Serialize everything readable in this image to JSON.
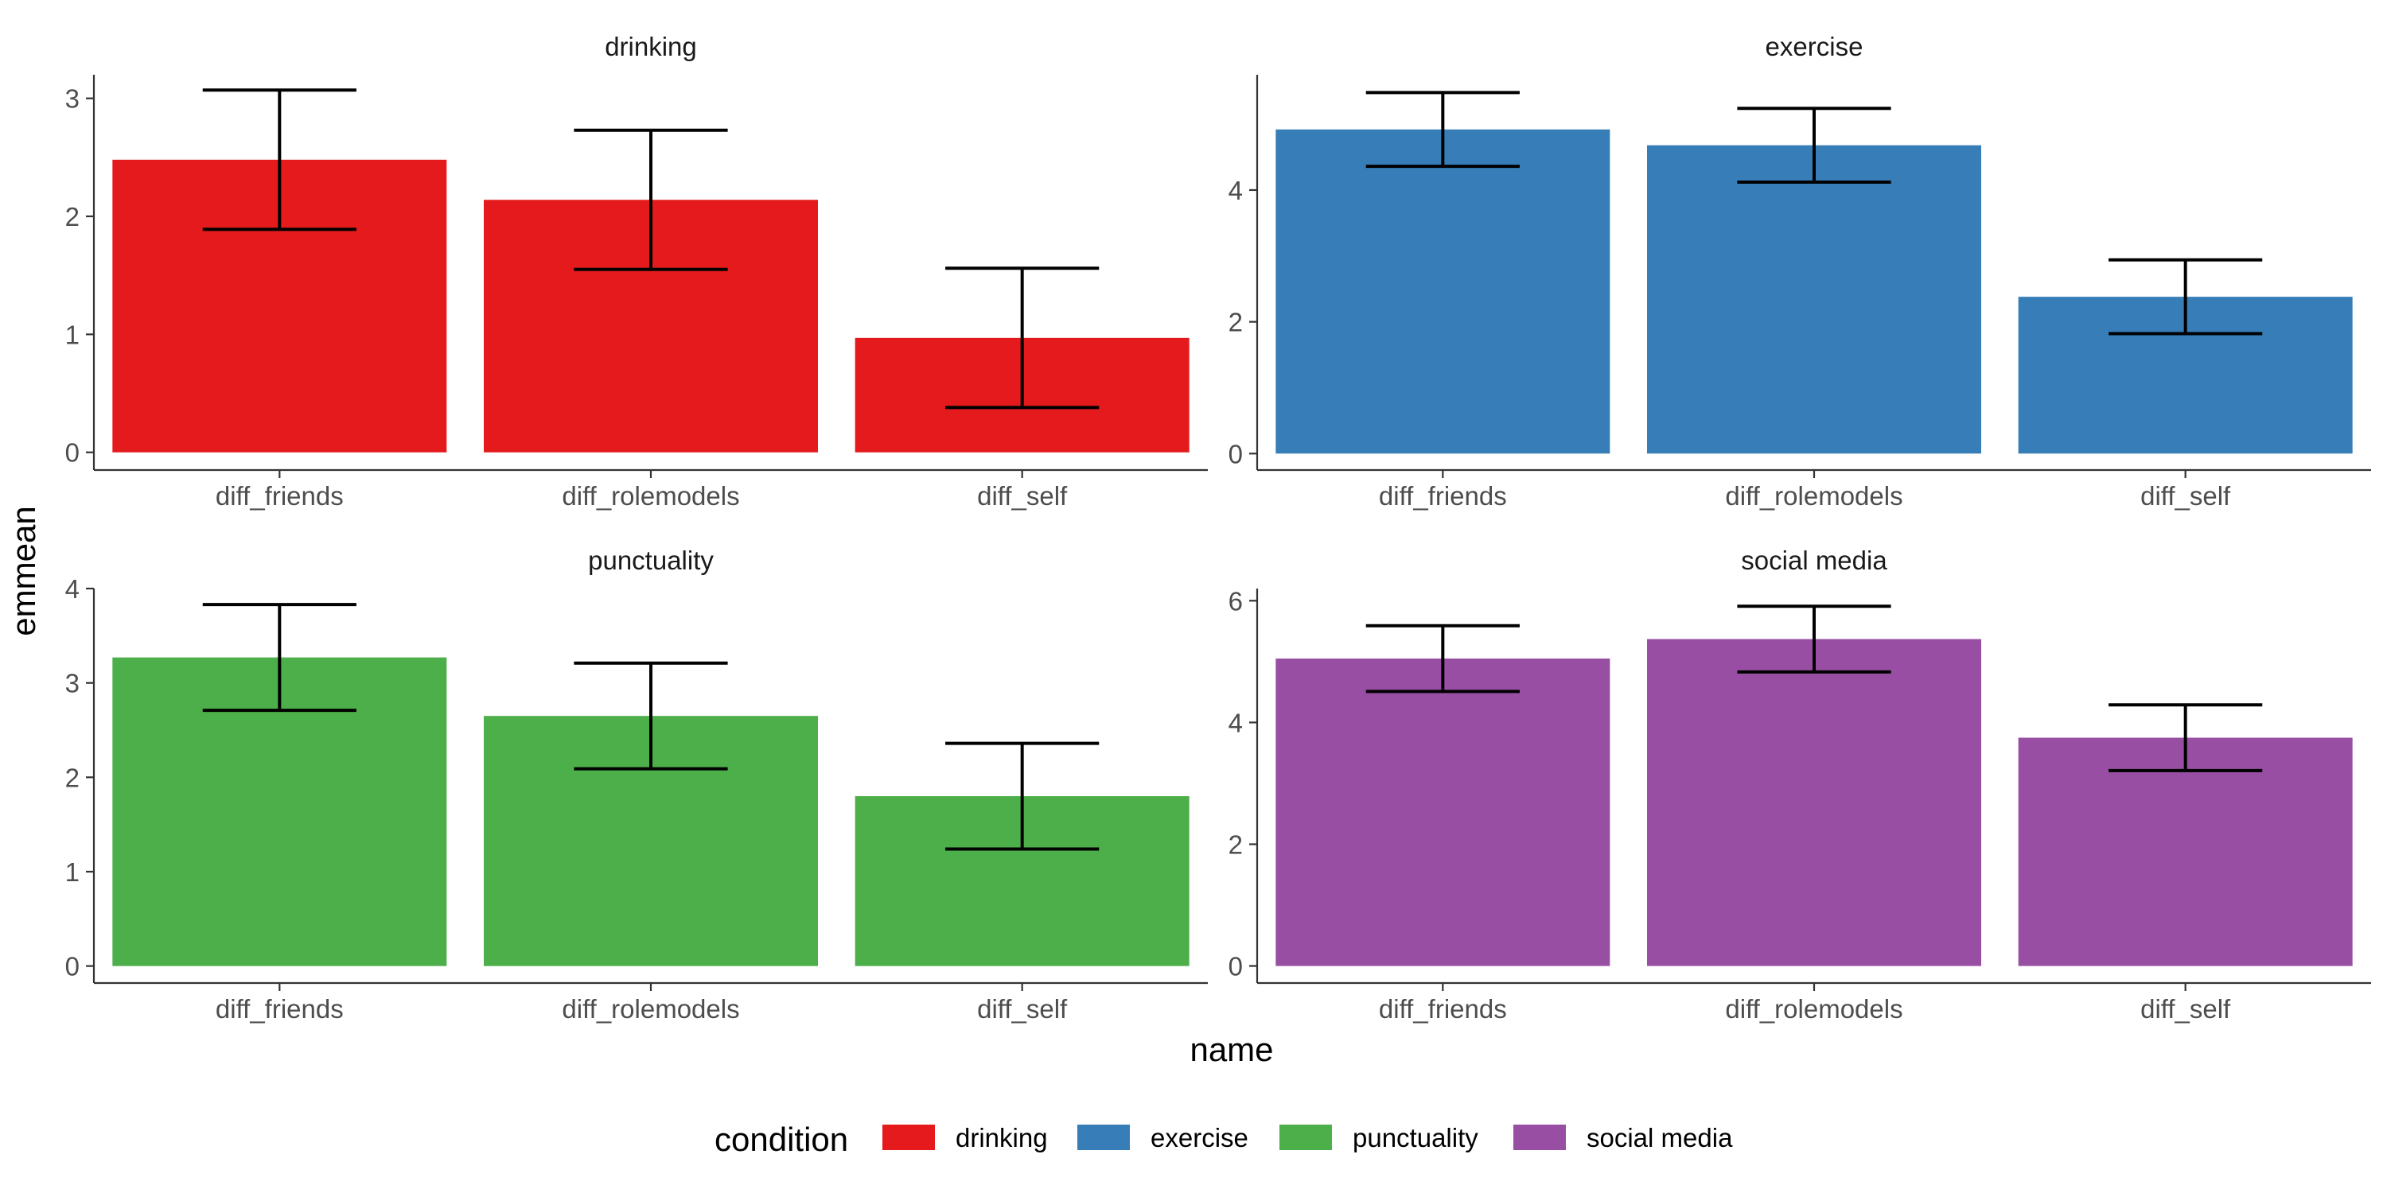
{
  "chart_data": {
    "type": "bar",
    "xlabel": "name",
    "ylabel": "emmean",
    "legend": {
      "title": "condition",
      "placement": "bottom",
      "entries": [
        "drinking",
        "exercise",
        "punctuality",
        "social media"
      ]
    },
    "categories": [
      "diff_friends",
      "diff_rolemodels",
      "diff_self"
    ],
    "grid": false,
    "facets": [
      {
        "title": "drinking",
        "color": "#E41A1C",
        "ylim": [
          -0.15,
          3.2
        ],
        "yticks": [
          0,
          1,
          2,
          3
        ],
        "values": [
          2.48,
          2.14,
          0.97
        ],
        "error_low": [
          1.89,
          1.55,
          0.38
        ],
        "error_high": [
          3.07,
          2.73,
          1.56
        ]
      },
      {
        "title": "exercise",
        "color": "#377EB8",
        "ylim": [
          -0.25,
          5.75
        ],
        "yticks": [
          0,
          2,
          4
        ],
        "values": [
          4.92,
          4.68,
          2.38
        ],
        "error_low": [
          4.36,
          4.12,
          1.82
        ],
        "error_high": [
          5.48,
          5.24,
          2.94
        ]
      },
      {
        "title": "punctuality",
        "color": "#4DAF4A",
        "ylim": [
          -0.18,
          4.0
        ],
        "yticks": [
          0,
          1,
          2,
          3,
          4
        ],
        "values": [
          3.27,
          2.65,
          1.8
        ],
        "error_low": [
          2.71,
          2.09,
          1.24
        ],
        "error_high": [
          3.83,
          3.21,
          2.36
        ]
      },
      {
        "title": "social media",
        "color": "#984EA3",
        "ylim": [
          -0.28,
          6.2
        ],
        "yticks": [
          0,
          2,
          4,
          6
        ],
        "values": [
          5.05,
          5.37,
          3.75
        ],
        "error_low": [
          4.51,
          4.83,
          3.21
        ],
        "error_high": [
          5.59,
          5.91,
          4.29
        ]
      }
    ]
  }
}
